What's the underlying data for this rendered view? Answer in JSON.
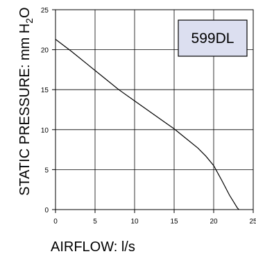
{
  "chart_data": {
    "type": "line",
    "title": "",
    "xlabel": "AIRFLOW: l/s",
    "ylabel_prefix": "STATIC PRESSURE: mm H",
    "ylabel_sub": "2",
    "ylabel_suffix": "O",
    "xlim": [
      0,
      25
    ],
    "ylim": [
      0,
      25
    ],
    "x_ticks": [
      "0",
      "5",
      "10",
      "15",
      "20",
      "25"
    ],
    "y_ticks": [
      "0",
      "5",
      "10",
      "15",
      "20",
      "25"
    ],
    "grid": true,
    "badge": "599DL",
    "badge_color": "#dcdff0",
    "line_color": "#000000",
    "series": [
      {
        "name": "",
        "x": [
          0,
          2,
          4,
          6,
          8,
          10,
          12,
          14,
          15,
          16,
          18,
          19,
          20,
          21,
          22,
          23,
          23.2
        ],
        "values": [
          21.3,
          19.8,
          18.2,
          16.6,
          15.0,
          13.6,
          12.2,
          10.8,
          10.1,
          9.3,
          7.7,
          6.7,
          5.5,
          3.7,
          1.8,
          0.2,
          0
        ]
      }
    ]
  }
}
